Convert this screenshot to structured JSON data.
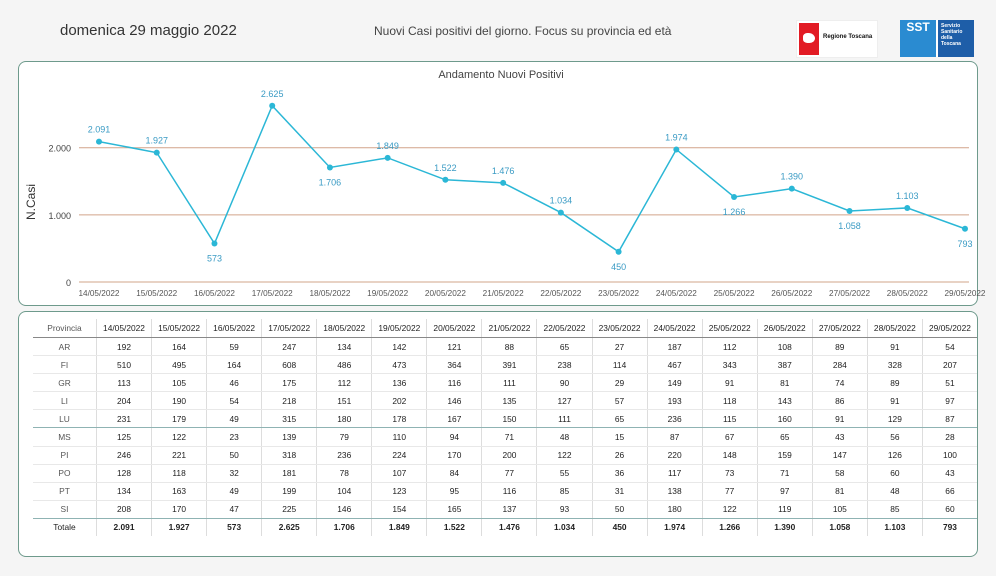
{
  "header": {
    "date": "domenica 29 maggio 2022",
    "subtitle": "Nuovi Casi positivi del giorno. Focus su provincia ed età",
    "logo_regione": "Regione Toscana",
    "logo_sst_mark": "SST",
    "logo_sst_text": "Servizio Sanitario della Toscana"
  },
  "colors": {
    "line": "#2bb7d6",
    "grid": "#d2a48a",
    "border": "#6e9a8c",
    "label": "#3a9bc4"
  },
  "chart_data": {
    "type": "line",
    "title": "Andamento Nuovi Positivi",
    "ylabel": "N.Casi",
    "xlabel": "",
    "ylim": [
      0,
      2800
    ],
    "yticks": [
      0,
      1000,
      2000
    ],
    "ytick_labels": [
      "0",
      "1.000",
      "2.000"
    ],
    "grid": true,
    "categories": [
      "14/05/2022",
      "15/05/2022",
      "16/05/2022",
      "17/05/2022",
      "18/05/2022",
      "19/05/2022",
      "20/05/2022",
      "21/05/2022",
      "22/05/2022",
      "23/05/2022",
      "24/05/2022",
      "25/05/2022",
      "26/05/2022",
      "27/05/2022",
      "28/05/2022",
      "29/05/2022"
    ],
    "values": [
      2091,
      1927,
      573,
      2625,
      1706,
      1849,
      1522,
      1476,
      1034,
      450,
      1974,
      1266,
      1390,
      1058,
      1103,
      793
    ],
    "value_labels": [
      "2.091",
      "1.927",
      "573",
      "2.625",
      "1.706",
      "1.849",
      "1.522",
      "1.476",
      "1.034",
      "450",
      "1.974",
      "1.266",
      "1.390",
      "1.058",
      "1.103",
      "793"
    ],
    "label_positions": [
      "above",
      "above",
      "below",
      "above",
      "below",
      "above",
      "above",
      "above",
      "above",
      "below",
      "above",
      "below",
      "above",
      "below",
      "above",
      "below"
    ]
  },
  "table": {
    "corner": "Provincia",
    "dates": [
      "14/05/2022",
      "15/05/2022",
      "16/05/2022",
      "17/05/2022",
      "18/05/2022",
      "19/05/2022",
      "20/05/2022",
      "21/05/2022",
      "22/05/2022",
      "23/05/2022",
      "24/05/2022",
      "25/05/2022",
      "26/05/2022",
      "27/05/2022",
      "28/05/2022",
      "29/05/2022"
    ],
    "rows": [
      {
        "prov": "AR",
        "values": [
          "192",
          "164",
          "59",
          "247",
          "134",
          "142",
          "121",
          "88",
          "65",
          "27",
          "187",
          "112",
          "108",
          "89",
          "91",
          "54"
        ]
      },
      {
        "prov": "FI",
        "values": [
          "510",
          "495",
          "164",
          "608",
          "486",
          "473",
          "364",
          "391",
          "238",
          "114",
          "467",
          "343",
          "387",
          "284",
          "328",
          "207"
        ]
      },
      {
        "prov": "GR",
        "values": [
          "113",
          "105",
          "46",
          "175",
          "112",
          "136",
          "116",
          "111",
          "90",
          "29",
          "149",
          "91",
          "81",
          "74",
          "89",
          "51"
        ]
      },
      {
        "prov": "LI",
        "values": [
          "204",
          "190",
          "54",
          "218",
          "151",
          "202",
          "146",
          "135",
          "127",
          "57",
          "193",
          "118",
          "143",
          "86",
          "91",
          "97"
        ]
      },
      {
        "prov": "LU",
        "values": [
          "231",
          "179",
          "49",
          "315",
          "180",
          "178",
          "167",
          "150",
          "111",
          "65",
          "236",
          "115",
          "160",
          "91",
          "129",
          "87"
        ]
      },
      {
        "prov": "MS",
        "values": [
          "125",
          "122",
          "23",
          "139",
          "79",
          "110",
          "94",
          "71",
          "48",
          "15",
          "87",
          "67",
          "65",
          "43",
          "56",
          "28"
        ]
      },
      {
        "prov": "PI",
        "values": [
          "246",
          "221",
          "50",
          "318",
          "236",
          "224",
          "170",
          "200",
          "122",
          "26",
          "220",
          "148",
          "159",
          "147",
          "126",
          "100"
        ]
      },
      {
        "prov": "PO",
        "values": [
          "128",
          "118",
          "32",
          "181",
          "78",
          "107",
          "84",
          "77",
          "55",
          "36",
          "117",
          "73",
          "71",
          "58",
          "60",
          "43"
        ]
      },
      {
        "prov": "PT",
        "values": [
          "134",
          "163",
          "49",
          "199",
          "104",
          "123",
          "95",
          "116",
          "85",
          "31",
          "138",
          "77",
          "97",
          "81",
          "48",
          "66"
        ]
      },
      {
        "prov": "SI",
        "values": [
          "208",
          "170",
          "47",
          "225",
          "146",
          "154",
          "165",
          "137",
          "93",
          "50",
          "180",
          "122",
          "119",
          "105",
          "85",
          "60"
        ]
      }
    ],
    "total": {
      "prov": "Totale",
      "values": [
        "2.091",
        "1.927",
        "573",
        "2.625",
        "1.706",
        "1.849",
        "1.522",
        "1.476",
        "1.034",
        "450",
        "1.974",
        "1.266",
        "1.390",
        "1.058",
        "1.103",
        "793"
      ]
    }
  }
}
